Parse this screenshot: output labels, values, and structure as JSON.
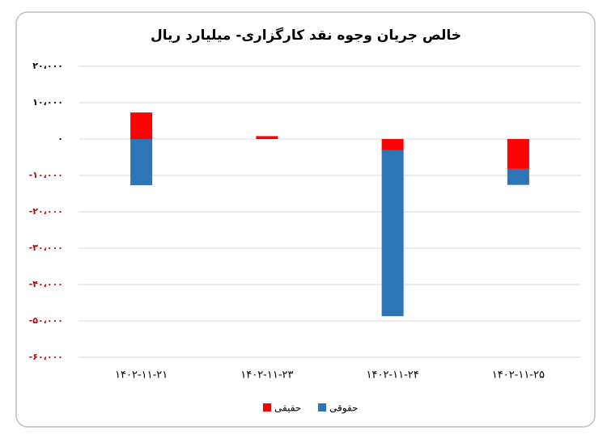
{
  "chart_data": {
    "type": "stacked-bar",
    "title": "خالص جریان وجوه نقد کارگزاری- میلیارد ریال",
    "categories": [
      "۱۴۰۲-۱۱-۲۱",
      "۱۴۰۲-۱۱-۲۳",
      "۱۴۰۲-۱۱-۲۴",
      "۱۴۰۲-۱۱-۲۵"
    ],
    "series": [
      {
        "name": "حقیقی",
        "color": "#ff0000",
        "values": [
          7300,
          800,
          -3100,
          -8200
        ]
      },
      {
        "name": "حقوقی",
        "color": "#2e75b6",
        "values": [
          -12700,
          0,
          -45600,
          -4400
        ]
      }
    ],
    "ylim": [
      -60000,
      20000
    ],
    "yticks": [
      {
        "value": -60000,
        "label": "-۶۰،۰۰۰"
      },
      {
        "value": -50000,
        "label": "-۵۰،۰۰۰"
      },
      {
        "value": -40000,
        "label": "-۴۰،۰۰۰"
      },
      {
        "value": -30000,
        "label": "-۳۰،۰۰۰"
      },
      {
        "value": -20000,
        "label": "-۲۰،۰۰۰"
      },
      {
        "value": -10000,
        "label": "-۱۰،۰۰۰"
      },
      {
        "value": 0,
        "label": "۰"
      },
      {
        "value": 10000,
        "label": "۱۰،۰۰۰"
      },
      {
        "value": 20000,
        "label": "۲۰،۰۰۰"
      }
    ],
    "grid": true,
    "legend": "bottom"
  }
}
